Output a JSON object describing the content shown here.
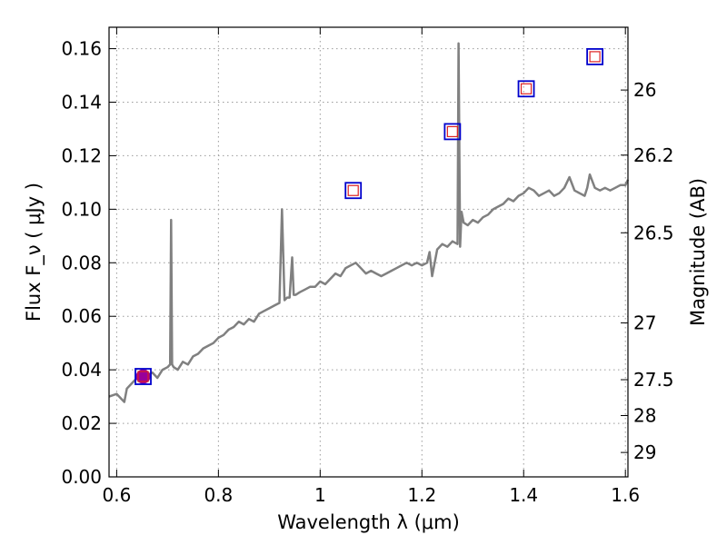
{
  "chart_data": {
    "type": "line",
    "xlabel": "Wavelength  λ (μm)",
    "ylabel": "Flux  F_ν  ( μJy )",
    "ylabel_right": "Magnitude (AB)",
    "xlim": [
      0.585,
      1.605
    ],
    "ylim": [
      0.0,
      0.168
    ],
    "grid": true,
    "x_ticks": [
      0.6,
      0.8,
      1.0,
      1.2,
      1.4,
      1.6
    ],
    "x_tick_labels": [
      "0.6",
      "0.8",
      "1",
      "1.2",
      "1.4",
      "1.6"
    ],
    "y_ticks": [
      0.0,
      0.02,
      0.04,
      0.06,
      0.08,
      0.1,
      0.12,
      0.14,
      0.16
    ],
    "y_tick_labels": [
      "0.00",
      "0.02",
      "0.04",
      "0.06",
      "0.08",
      "0.10",
      "0.12",
      "0.14",
      "0.16"
    ],
    "mag_ticks": [
      26,
      26.2,
      26.5,
      27,
      27.5,
      28,
      29
    ],
    "mag_tick_labels": [
      "26",
      "26.2",
      "26.5",
      "27",
      "27.5",
      "28",
      "29"
    ],
    "colors": {
      "spectrum": "#808080",
      "square_outer": "#0000cc",
      "square_inner": "#dd2222",
      "observed_point": "#990099"
    },
    "spectrum": {
      "x": [
        0.585,
        0.6,
        0.61,
        0.615,
        0.62,
        0.63,
        0.64,
        0.65,
        0.66,
        0.67,
        0.68,
        0.69,
        0.7,
        0.705,
        0.707,
        0.709,
        0.712,
        0.72,
        0.73,
        0.74,
        0.75,
        0.76,
        0.77,
        0.78,
        0.79,
        0.8,
        0.81,
        0.82,
        0.83,
        0.84,
        0.85,
        0.86,
        0.87,
        0.88,
        0.89,
        0.9,
        0.91,
        0.92,
        0.925,
        0.93,
        0.935,
        0.94,
        0.945,
        0.948,
        0.952,
        0.96,
        0.97,
        0.98,
        0.99,
        1.0,
        1.01,
        1.02,
        1.03,
        1.04,
        1.05,
        1.06,
        1.07,
        1.08,
        1.09,
        1.1,
        1.11,
        1.12,
        1.13,
        1.14,
        1.15,
        1.16,
        1.17,
        1.18,
        1.19,
        1.2,
        1.21,
        1.215,
        1.22,
        1.23,
        1.24,
        1.25,
        1.26,
        1.27,
        1.272,
        1.275,
        1.278,
        1.282,
        1.29,
        1.3,
        1.31,
        1.32,
        1.33,
        1.34,
        1.35,
        1.36,
        1.37,
        1.38,
        1.39,
        1.4,
        1.41,
        1.42,
        1.43,
        1.44,
        1.45,
        1.46,
        1.47,
        1.48,
        1.49,
        1.5,
        1.51,
        1.52,
        1.525,
        1.53,
        1.54,
        1.55,
        1.56,
        1.57,
        1.58,
        1.59,
        1.6,
        1.605
      ],
      "y": [
        0.03,
        0.031,
        0.029,
        0.028,
        0.033,
        0.035,
        0.037,
        0.037,
        0.038,
        0.039,
        0.037,
        0.04,
        0.041,
        0.042,
        0.096,
        0.042,
        0.041,
        0.04,
        0.043,
        0.042,
        0.045,
        0.046,
        0.048,
        0.049,
        0.05,
        0.052,
        0.053,
        0.055,
        0.056,
        0.058,
        0.057,
        0.059,
        0.058,
        0.061,
        0.062,
        0.063,
        0.064,
        0.065,
        0.1,
        0.066,
        0.067,
        0.067,
        0.082,
        0.068,
        0.068,
        0.069,
        0.07,
        0.071,
        0.071,
        0.073,
        0.072,
        0.074,
        0.076,
        0.075,
        0.078,
        0.079,
        0.08,
        0.078,
        0.076,
        0.077,
        0.076,
        0.075,
        0.076,
        0.077,
        0.078,
        0.079,
        0.08,
        0.079,
        0.08,
        0.079,
        0.08,
        0.084,
        0.075,
        0.085,
        0.087,
        0.086,
        0.088,
        0.087,
        0.162,
        0.086,
        0.099,
        0.095,
        0.094,
        0.096,
        0.095,
        0.097,
        0.098,
        0.1,
        0.101,
        0.102,
        0.104,
        0.103,
        0.105,
        0.106,
        0.108,
        0.107,
        0.105,
        0.106,
        0.107,
        0.105,
        0.106,
        0.108,
        0.112,
        0.107,
        0.106,
        0.105,
        0.108,
        0.113,
        0.108,
        0.107,
        0.108,
        0.107,
        0.108,
        0.109,
        0.109,
        0.111
      ]
    },
    "model_photometry": {
      "x": [
        0.652,
        1.065,
        1.26,
        1.405,
        1.54
      ],
      "y": [
        0.0375,
        0.107,
        0.129,
        0.145,
        0.157
      ]
    },
    "observed": {
      "x": [
        0.652
      ],
      "y": [
        0.0375
      ]
    }
  }
}
